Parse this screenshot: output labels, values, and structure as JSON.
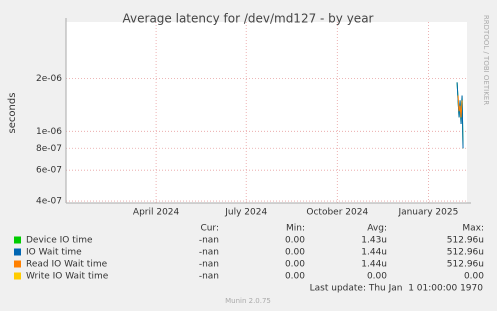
{
  "chart_data": {
    "type": "line",
    "title": "Average latency for /dev/md127 - by year",
    "y_label": "seconds",
    "side_text": "RRDTOOL / TOBI OETIKER",
    "log_scale": true,
    "grid": true,
    "xlim": [
      "2024-01-01",
      "2025-02-09"
    ],
    "xticks": [
      {
        "value": "2024-04-01",
        "label": "April 2024"
      },
      {
        "value": "2024-07-01",
        "label": "July 2024"
      },
      {
        "value": "2024-10-01",
        "label": "October 2024"
      },
      {
        "value": "2025-01-01",
        "label": "January 2025"
      }
    ],
    "ylim": [
      3.9e-07,
      4.2e-06
    ],
    "yticks": [
      {
        "value": 4e-07,
        "label": "4e-07"
      },
      {
        "value": 6e-07,
        "label": "6e-07"
      },
      {
        "value": 8e-07,
        "label": "8e-07"
      },
      {
        "value": 1e-06,
        "label": "1e-06"
      },
      {
        "value": 2e-06,
        "label": "2e-06"
      }
    ],
    "x": [
      "2025-01-30",
      "2025-01-31",
      "2025-02-01",
      "2025-02-02",
      "2025-02-03",
      "2025-02-04",
      "2025-02-05"
    ],
    "columns": [
      "Cur:",
      "Min:",
      "Avg:",
      "Max:"
    ],
    "series": [
      {
        "name": "Device IO time",
        "color": "#00cc00",
        "values": [
          1.9e-06,
          1.5e-06,
          1.2e-06,
          1.5e-06,
          1.1e-06,
          1.6e-06,
          8e-07
        ],
        "cur": "-nan",
        "min": "0.00",
        "avg": "1.43u",
        "max": "512.96u"
      },
      {
        "name": "IO Wait time",
        "color": "#0066b3",
        "values": [
          1.9e-06,
          1.5e-06,
          1.2e-06,
          1.5e-06,
          1.1e-06,
          1.6e-06,
          8e-07
        ],
        "cur": "-nan",
        "min": "0.00",
        "avg": "1.44u",
        "max": "512.96u"
      },
      {
        "name": "Read IO Wait time",
        "color": "#ff8000",
        "values": [
          null,
          1.6e-06,
          1.3e-06,
          1.4e-06,
          1.2e-06,
          1.5e-06,
          null
        ],
        "cur": "-nan",
        "min": "0.00",
        "avg": "1.44u",
        "max": "512.96u"
      },
      {
        "name": "Write IO Wait time",
        "color": "#ffcc00",
        "values": [
          null,
          null,
          null,
          null,
          null,
          null,
          null
        ],
        "cur": "-nan",
        "min": "0.00",
        "avg": "0.00",
        "max": "0.00"
      }
    ],
    "last_update": "Last update: Thu Jan  1 01:00:00 1970",
    "footer": "Munin 2.0.75"
  }
}
